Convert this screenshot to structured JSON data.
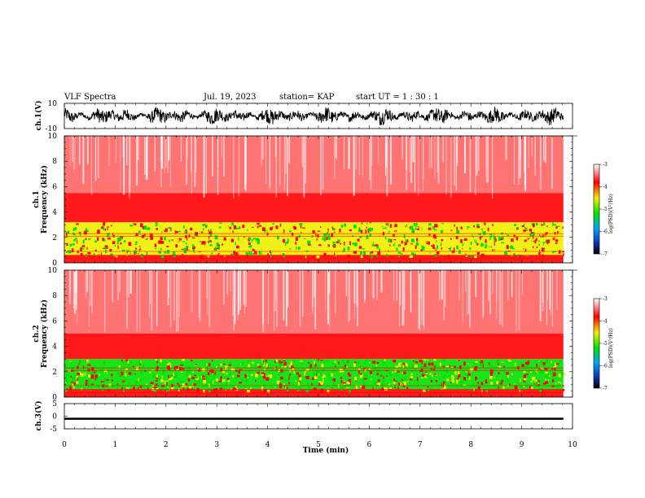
{
  "header": {
    "title": "VLF Spectra",
    "date": "Jul. 19, 2023",
    "station": "station= KAP",
    "start": "start UT =  1 : 30 : 1"
  },
  "colors": {
    "spectrum_low": "#0010a0",
    "spectrum_mid": "#00e000",
    "spectrum_yellow": "#f0f000",
    "spectrum_high": "#ff0000",
    "spectrum_max": "#ffffff",
    "trace": "#000000"
  },
  "chart_data": [
    {
      "type": "line",
      "name": "ch1-waveform",
      "ylabel": "ch.1(V)",
      "ylim": [
        -10,
        10
      ],
      "yticks": [
        "10",
        "-10"
      ],
      "xlim": [
        0,
        10
      ],
      "approx_amplitude_v": [
        -8,
        8
      ]
    },
    {
      "type": "heatmap",
      "name": "ch1-spectrogram",
      "ylabel": "ch.1\nFrequency (kHz)",
      "ylabel_lines": [
        "ch.1",
        "Frequency (kHz)"
      ],
      "yticks": [
        "0",
        "2",
        "4",
        "6",
        "8",
        "10"
      ],
      "ylim": [
        0,
        10
      ],
      "xlim": [
        0,
        10
      ],
      "data_end_min": 9.82,
      "bands_khz": [
        {
          "from": 0,
          "to": 0.6,
          "level": "high"
        },
        {
          "from": 0.6,
          "to": 3.2,
          "level": "mid"
        },
        {
          "from": 3.2,
          "to": 5.5,
          "level": "high"
        },
        {
          "from": 5.5,
          "to": 10,
          "level": "sparse-high"
        }
      ],
      "colorbar": {
        "label": "log(PSD)(V²/Hz)",
        "ticks": [
          "-3",
          "-4",
          "-5",
          "-6",
          "-7"
        ],
        "range": [
          -7,
          -3
        ]
      }
    },
    {
      "type": "heatmap",
      "name": "ch2-spectrogram",
      "ylabel": "ch.2\nFrequency (kHz)",
      "ylabel_lines": [
        "ch.2",
        "Frequency (kHz)"
      ],
      "yticks": [
        "0",
        "2",
        "4",
        "6",
        "8",
        "10"
      ],
      "ylim": [
        0,
        10
      ],
      "xlim": [
        0,
        10
      ],
      "data_end_min": 9.82,
      "bands_khz": [
        {
          "from": 0,
          "to": 0.6,
          "level": "high"
        },
        {
          "from": 0.6,
          "to": 3.0,
          "level": "mid-green"
        },
        {
          "from": 3.0,
          "to": 5.0,
          "level": "high"
        },
        {
          "from": 5.0,
          "to": 10,
          "level": "sparse-high"
        }
      ],
      "colorbar": {
        "label": "log(PSD)(V²/Hz)",
        "ticks": [
          "-3",
          "-4",
          "-5",
          "-6",
          "-7"
        ],
        "range": [
          -7,
          -3
        ]
      }
    },
    {
      "type": "line",
      "name": "ch3-waveform",
      "ylabel": "ch.3(V)",
      "ylim": [
        -5,
        5
      ],
      "yticks": [
        "5",
        "0",
        "-5"
      ],
      "xlim": [
        0,
        10
      ],
      "approx_level_v": [
        -1.4,
        -0.6
      ]
    }
  ],
  "xaxis": {
    "label": "Time (min)",
    "ticks": [
      "0",
      "1",
      "2",
      "3",
      "4",
      "5",
      "6",
      "7",
      "8",
      "9",
      "10"
    ],
    "range": [
      0,
      10
    ]
  }
}
